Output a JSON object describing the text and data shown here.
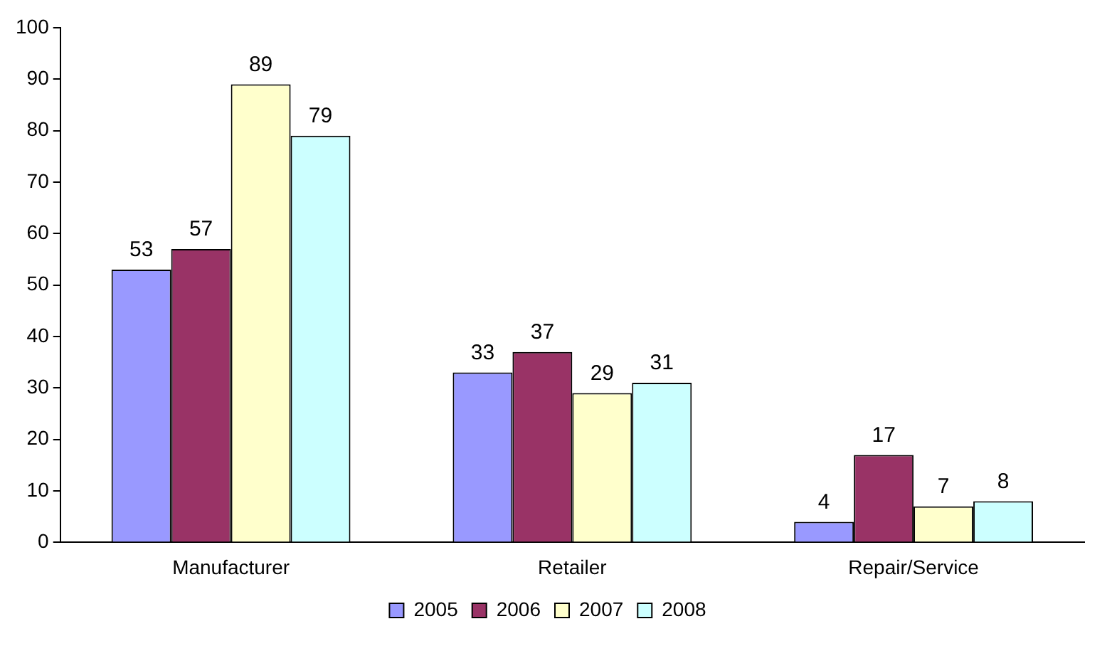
{
  "chart_data": {
    "type": "bar",
    "categories": [
      "Manufacturer",
      "Retailer",
      "Repair/Service"
    ],
    "series": [
      {
        "name": "2005",
        "color": "#9999ff",
        "values": [
          53,
          33,
          4
        ]
      },
      {
        "name": "2006",
        "color": "#993366",
        "values": [
          57,
          37,
          17
        ]
      },
      {
        "name": "2007",
        "color": "#ffffcc",
        "values": [
          89,
          29,
          7
        ]
      },
      {
        "name": "2008",
        "color": "#ccffff",
        "values": [
          79,
          31,
          8
        ]
      }
    ],
    "ylim": [
      0,
      100
    ],
    "yticks": [
      0,
      10,
      20,
      30,
      40,
      50,
      60,
      70,
      80,
      90,
      100
    ],
    "grid": false,
    "legend": "bottom",
    "data_labels": true
  }
}
